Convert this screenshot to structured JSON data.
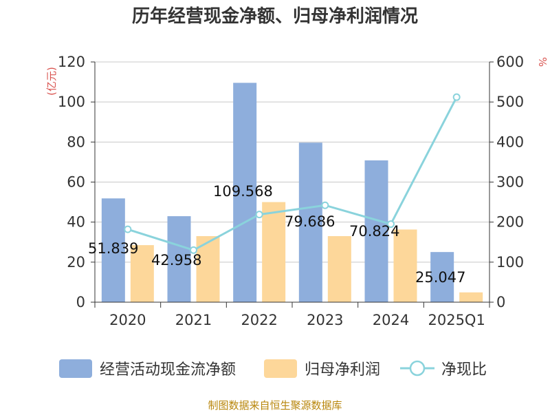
{
  "chart_data": {
    "type": "bar+line",
    "title": "历年经营现金净额、归母净利润情况",
    "categories": [
      "2020",
      "2021",
      "2022",
      "2023",
      "2024",
      "2025Q1"
    ],
    "left_axis": {
      "unit": "(亿元)",
      "range": [
        0,
        120
      ],
      "ticks": [
        "0",
        "20",
        "40",
        "60",
        "80",
        "100",
        "120"
      ]
    },
    "right_axis": {
      "unit": "%",
      "range": [
        0,
        600
      ],
      "ticks": [
        "0",
        "100",
        "200",
        "300",
        "400",
        "500",
        "600"
      ]
    },
    "series": [
      {
        "name": "经营活动现金流净额",
        "type": "bar",
        "axis": "left",
        "color": "#8eaedc",
        "values": [
          51.839,
          42.958,
          109.568,
          79.686,
          70.824,
          25.047
        ],
        "labels": [
          "51.839",
          "42.958",
          "109.568",
          "79.686",
          "70.824",
          "25.047"
        ]
      },
      {
        "name": "归母净利润",
        "type": "bar",
        "axis": "left",
        "color": "#fdd79a",
        "values": [
          28.5,
          33.0,
          50.0,
          33.0,
          36.3,
          4.9
        ]
      },
      {
        "name": "净现比",
        "type": "line",
        "axis": "right",
        "color": "#8ad3dc",
        "values": [
          182,
          130,
          219,
          242,
          195,
          512
        ]
      }
    ],
    "grid": true,
    "legend_position": "bottom"
  },
  "source": "制图数据来自恒生聚源数据库"
}
